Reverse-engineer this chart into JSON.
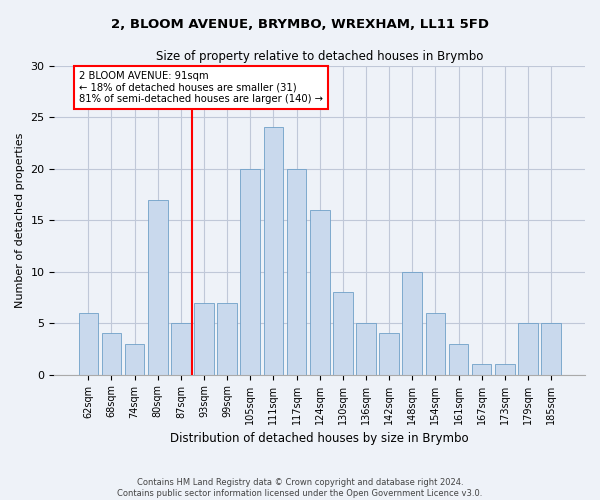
{
  "title1": "2, BLOOM AVENUE, BRYMBO, WREXHAM, LL11 5FD",
  "title2": "Size of property relative to detached houses in Brymbo",
  "xlabel": "Distribution of detached houses by size in Brymbo",
  "ylabel": "Number of detached properties",
  "categories": [
    "62sqm",
    "68sqm",
    "74sqm",
    "80sqm",
    "87sqm",
    "93sqm",
    "99sqm",
    "105sqm",
    "111sqm",
    "117sqm",
    "124sqm",
    "130sqm",
    "136sqm",
    "142sqm",
    "148sqm",
    "154sqm",
    "161sqm",
    "167sqm",
    "173sqm",
    "179sqm",
    "185sqm"
  ],
  "values": [
    6,
    4,
    3,
    17,
    5,
    7,
    7,
    20,
    24,
    20,
    16,
    8,
    5,
    4,
    10,
    6,
    3,
    1,
    1,
    5,
    5
  ],
  "bar_color": "#c9d9ed",
  "bar_edge_color": "#6fa0c8",
  "property_line_x": 4.5,
  "annotation_text": "2 BLOOM AVENUE: 91sqm\n← 18% of detached houses are smaller (31)\n81% of semi-detached houses are larger (140) →",
  "annotation_box_color": "white",
  "annotation_box_edge_color": "red",
  "vline_color": "red",
  "ylim": [
    0,
    30
  ],
  "yticks": [
    0,
    5,
    10,
    15,
    20,
    25,
    30
  ],
  "grid_color": "#c0c8d8",
  "bg_color": "#eef2f8",
  "footer1": "Contains HM Land Registry data © Crown copyright and database right 2024.",
  "footer2": "Contains public sector information licensed under the Open Government Licence v3.0."
}
